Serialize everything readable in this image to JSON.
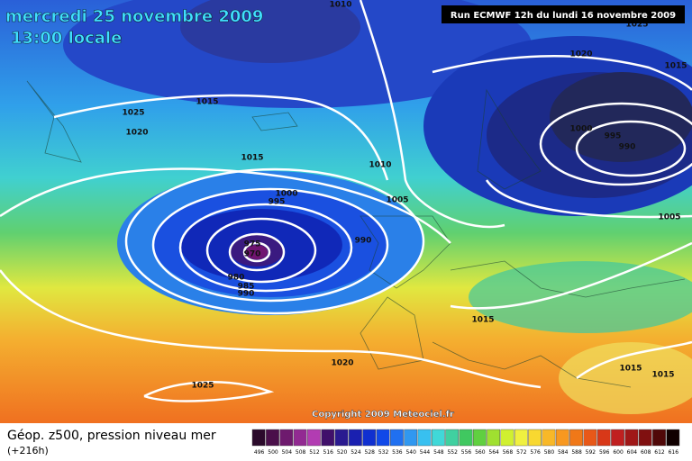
{
  "header": {
    "date": "mercredi 25 novembre 2009",
    "time": "13:00 locale"
  },
  "run": "Run ECMWF 12h du lundi 16 novembre 2009",
  "copyright": "Copyright 2009 Meteociel.fr",
  "legend": {
    "title": "Géop. z500, pression niveau mer",
    "lead": "(+216h)",
    "scale": [
      {
        "label": "496",
        "color": "#2b0a2b"
      },
      {
        "label": "500",
        "color": "#4a0f4a"
      },
      {
        "label": "504",
        "color": "#6e1a6e"
      },
      {
        "label": "508",
        "color": "#922a92"
      },
      {
        "label": "512",
        "color": "#b23cb2"
      },
      {
        "label": "516",
        "color": "#40106a"
      },
      {
        "label": "520",
        "color": "#2a1a90"
      },
      {
        "label": "524",
        "color": "#1a20b0"
      },
      {
        "label": "528",
        "color": "#1030d0"
      },
      {
        "label": "532",
        "color": "#1048e8"
      },
      {
        "label": "536",
        "color": "#2070f0"
      },
      {
        "label": "540",
        "color": "#3098f0"
      },
      {
        "label": "544",
        "color": "#38c0f0"
      },
      {
        "label": "548",
        "color": "#40d8d8"
      },
      {
        "label": "552",
        "color": "#40d0a0"
      },
      {
        "label": "556",
        "color": "#40c860"
      },
      {
        "label": "560",
        "color": "#60d040"
      },
      {
        "label": "564",
        "color": "#a0e030"
      },
      {
        "label": "568",
        "color": "#d0f030"
      },
      {
        "label": "572",
        "color": "#f0f040"
      },
      {
        "label": "576",
        "color": "#f8d830"
      },
      {
        "label": "580",
        "color": "#f8b828"
      },
      {
        "label": "584",
        "color": "#f89820"
      },
      {
        "label": "588",
        "color": "#f07818"
      },
      {
        "label": "592",
        "color": "#e85818"
      },
      {
        "label": "596",
        "color": "#d83818"
      },
      {
        "label": "600",
        "color": "#c02020"
      },
      {
        "label": "604",
        "color": "#a01818"
      },
      {
        "label": "608",
        "color": "#801010"
      },
      {
        "label": "612",
        "color": "#500808"
      },
      {
        "label": "616",
        "color": "#100000"
      }
    ]
  },
  "isobars": [
    1010,
    1025,
    1020,
    1015,
    1025,
    1015,
    1020,
    1000,
    995,
    990,
    1015,
    1010,
    1000,
    995,
    1005,
    1005,
    990,
    975,
    970,
    980,
    985,
    990,
    1015,
    1020,
    1015,
    1015,
    1025
  ]
}
